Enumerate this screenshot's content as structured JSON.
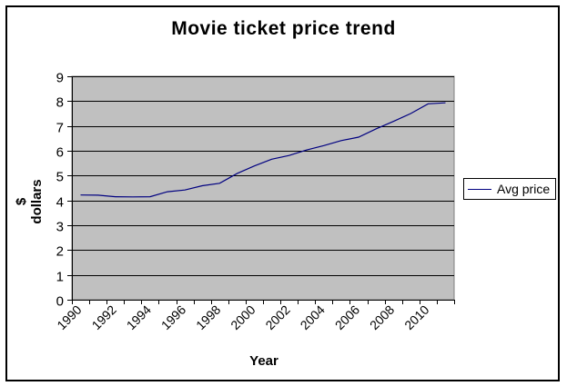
{
  "chart_data": {
    "type": "line",
    "title": "Movie ticket price trend",
    "xlabel": "Year",
    "ylabel": "$ dollars",
    "ylim": [
      0,
      9
    ],
    "yticks": [
      0,
      1,
      2,
      3,
      4,
      5,
      6,
      7,
      8,
      9
    ],
    "grid": true,
    "legend_position": "right",
    "plot_background": "#c0c0c0",
    "x": [
      1990,
      1991,
      1992,
      1993,
      1994,
      1995,
      1996,
      1997,
      1998,
      1999,
      2000,
      2001,
      2002,
      2003,
      2004,
      2005,
      2006,
      2007,
      2008,
      2009,
      2010,
      2011
    ],
    "xtick_labels": [
      "1990",
      "1992",
      "1994",
      "1996",
      "1998",
      "2000",
      "2002",
      "2004",
      "2006",
      "2008",
      "2010"
    ],
    "series": [
      {
        "name": "Avg price",
        "color": "#000080",
        "values": [
          4.22,
          4.21,
          4.15,
          4.14,
          4.15,
          4.35,
          4.42,
          4.59,
          4.69,
          5.08,
          5.39,
          5.66,
          5.81,
          6.03,
          6.21,
          6.41,
          6.55,
          6.88,
          7.18,
          7.5,
          7.89,
          7.93
        ]
      }
    ]
  }
}
